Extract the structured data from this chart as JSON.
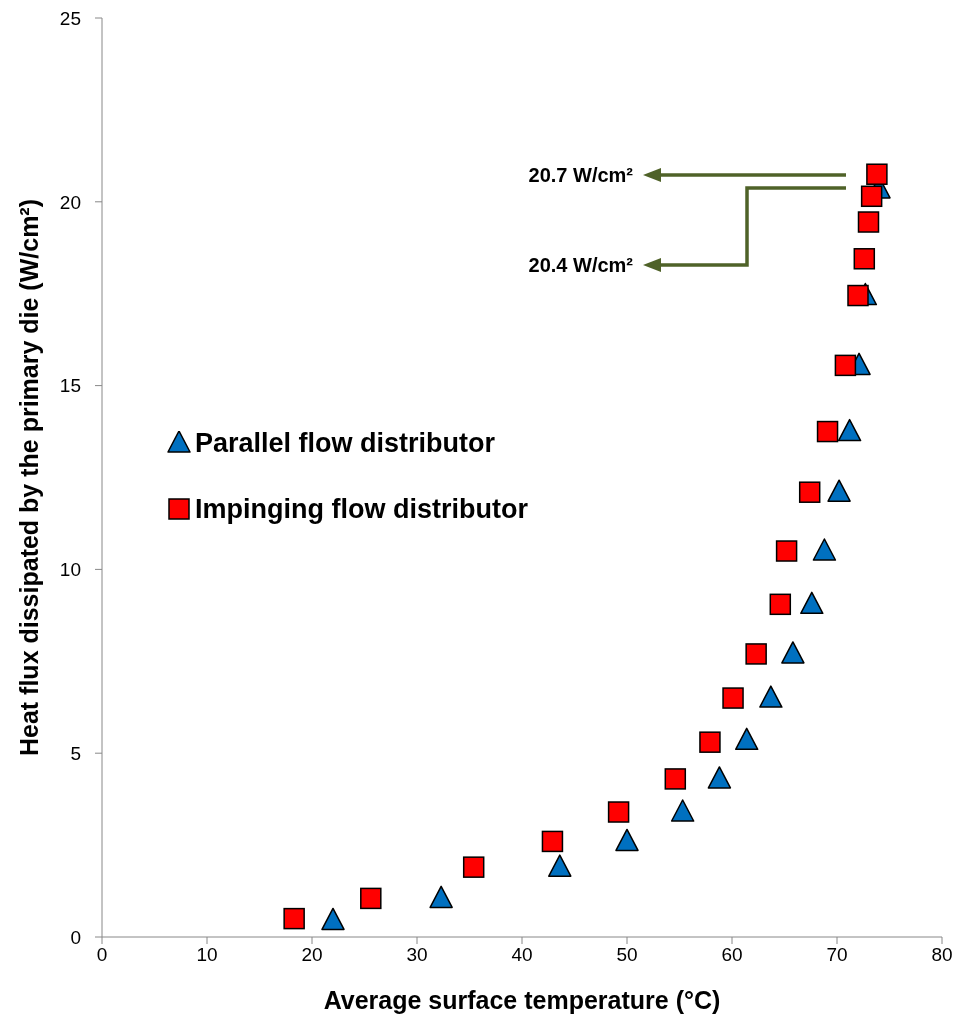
{
  "chart_data": {
    "type": "scatter",
    "xlabel": "Average surface temperature (°C)",
    "ylabel": "Heat flux dissipated by the primary die (W/cm²)",
    "xlim": [
      0,
      80
    ],
    "xticks": [
      0,
      10,
      20,
      30,
      40,
      50,
      60,
      70,
      80
    ],
    "ylim": [
      0,
      25
    ],
    "yticks": [
      0,
      5,
      10,
      15,
      20,
      25
    ],
    "grid": false,
    "legend": "left",
    "series": [
      {
        "name": "Parallel flow distributor",
        "color": "#0070c0",
        "marker": "triangle",
        "x": [
          22.0,
          32.3,
          43.6,
          50.0,
          55.3,
          58.8,
          61.4,
          63.7,
          65.8,
          67.6,
          68.8,
          70.2,
          71.2,
          72.1,
          72.7,
          74.0
        ],
        "values": [
          0.45,
          1.05,
          1.9,
          2.6,
          3.4,
          4.3,
          5.35,
          6.5,
          7.7,
          9.05,
          10.5,
          12.1,
          13.75,
          15.55,
          17.45,
          20.35
        ]
      },
      {
        "name": "Impinging flow distributor",
        "color": "#ff0000",
        "marker": "square",
        "x": [
          18.3,
          25.6,
          35.4,
          42.9,
          49.2,
          54.6,
          57.9,
          60.1,
          62.3,
          64.6,
          65.2,
          67.4,
          69.1,
          70.8,
          72.0,
          72.6,
          73.0,
          73.3,
          73.8
        ],
        "values": [
          0.5,
          1.05,
          1.9,
          2.6,
          3.4,
          4.3,
          5.3,
          6.5,
          7.7,
          9.05,
          10.5,
          12.1,
          13.75,
          15.55,
          17.45,
          18.45,
          19.45,
          20.15,
          20.75
        ]
      }
    ],
    "annotations": [
      "20.7 W/cm²",
      "20.4 W/cm²"
    ]
  }
}
